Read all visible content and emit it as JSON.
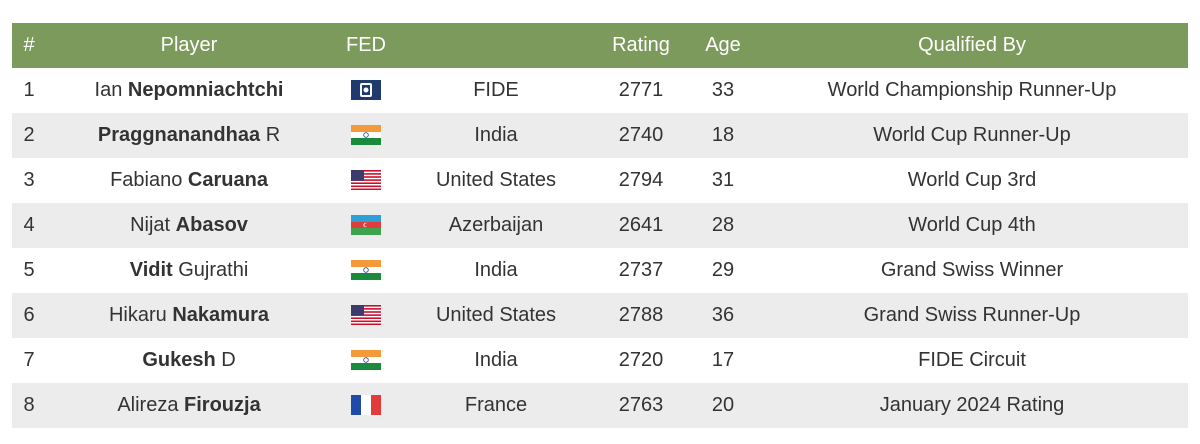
{
  "table": {
    "header": [
      "#",
      "Player",
      "FED",
      "Rating",
      "Age",
      "Qualified By"
    ],
    "rows": [
      {
        "rank": 1,
        "player": [
          {
            "text": "Ian"
          },
          {
            "text": "Nepomniachtchi",
            "bold": true
          }
        ],
        "fed": "FIDE",
        "rating": 2771,
        "age": 33,
        "qualified_by": "World Championship Runner-Up"
      },
      {
        "rank": 2,
        "player": [
          {
            "text": "Praggnanandhaa",
            "bold": true
          },
          {
            "text": "R"
          }
        ],
        "fed": "India",
        "rating": 2740,
        "age": 18,
        "qualified_by": "World Cup Runner-Up"
      },
      {
        "rank": 3,
        "player": [
          {
            "text": "Fabiano"
          },
          {
            "text": "Caruana",
            "bold": true
          }
        ],
        "fed": "United States",
        "rating": 2794,
        "age": 31,
        "qualified_by": "World Cup 3rd"
      },
      {
        "rank": 4,
        "player": [
          {
            "text": "Nijat"
          },
          {
            "text": "Abasov",
            "bold": true
          }
        ],
        "fed": "Azerbaijan",
        "rating": 2641,
        "age": 28,
        "qualified_by": "World Cup 4th"
      },
      {
        "rank": 5,
        "player": [
          {
            "text": "Vidit",
            "bold": true
          },
          {
            "text": "Gujrathi"
          }
        ],
        "fed": "India",
        "rating": 2737,
        "age": 29,
        "qualified_by": "Grand Swiss Winner"
      },
      {
        "rank": 6,
        "player": [
          {
            "text": "Hikaru"
          },
          {
            "text": "Nakamura",
            "bold": true
          }
        ],
        "fed": "United States",
        "rating": 2788,
        "age": 36,
        "qualified_by": "Grand Swiss Runner-Up"
      },
      {
        "rank": 7,
        "player": [
          {
            "text": "Gukesh",
            "bold": true
          },
          {
            "text": "D"
          }
        ],
        "fed": "India",
        "rating": 2720,
        "age": 17,
        "qualified_by": "FIDE Circuit"
      },
      {
        "rank": 8,
        "player": [
          {
            "text": "Alireza"
          },
          {
            "text": "Firouzja",
            "bold": true
          }
        ],
        "fed": "France",
        "rating": 2763,
        "age": 20,
        "qualified_by": "January 2024 Rating"
      }
    ]
  }
}
